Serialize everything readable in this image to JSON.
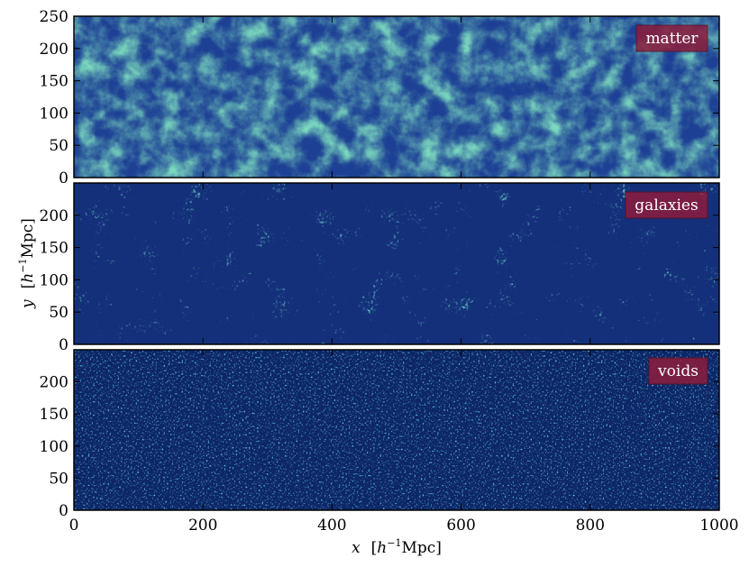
{
  "chart_data": [
    {
      "type": "heatmap",
      "panel_label": "matter",
      "xlim": [
        0,
        1000
      ],
      "ylim": [
        0,
        250
      ],
      "x_ticks": [
        0,
        200,
        400,
        600,
        800,
        1000
      ],
      "y_ticks": [
        0,
        50,
        100,
        150,
        200,
        250
      ],
      "x_tick_labels_visible": false,
      "colormap": "YlGnBu_r (dark blue low density, yellow-white high density)",
      "content": "continuous cosmic-web density field with filaments and voids"
    },
    {
      "type": "heatmap",
      "panel_label": "galaxies",
      "xlim": [
        0,
        1000
      ],
      "ylim": [
        0,
        250
      ],
      "x_ticks": [
        0,
        200,
        400,
        600,
        800,
        1000
      ],
      "y_ticks": [
        0,
        50,
        100,
        150,
        200
      ],
      "x_tick_labels_visible": false,
      "colormap": "YlGnBu_r (dark blue low density, yellow-white high density)",
      "content": "discrete galaxy distribution tracing the same filaments"
    },
    {
      "type": "heatmap",
      "panel_label": "voids",
      "xlim": [
        0,
        1000
      ],
      "ylim": [
        0,
        250
      ],
      "x_ticks": [
        0,
        200,
        400,
        600,
        800,
        1000
      ],
      "y_ticks": [
        0,
        50,
        100,
        150,
        200
      ],
      "x_tick_labels_visible": true,
      "colormap": "YlGnBu_r (dark blue low density, yellow-white high density)",
      "content": "sparse, nearly uniform distribution of void tracers"
    }
  ],
  "axes": {
    "xlabel_var": "x",
    "xlabel_unit_open": "[",
    "xlabel_unit_h": "h",
    "xlabel_unit_exp": "−1",
    "xlabel_unit_rest": "Mpc]",
    "ylabel_var": "y",
    "ylabel_unit_open": "[",
    "ylabel_unit_h": "h",
    "ylabel_unit_exp": "−1",
    "ylabel_unit_rest": "Mpc]"
  },
  "colors": {
    "label_box": "#8c1c3c",
    "label_text": "#ffffff",
    "field_dark": "#0b1f5c",
    "field_mid": "#2a5ca8",
    "field_light": "#41b6c4",
    "field_bright": "#edf8b1"
  }
}
